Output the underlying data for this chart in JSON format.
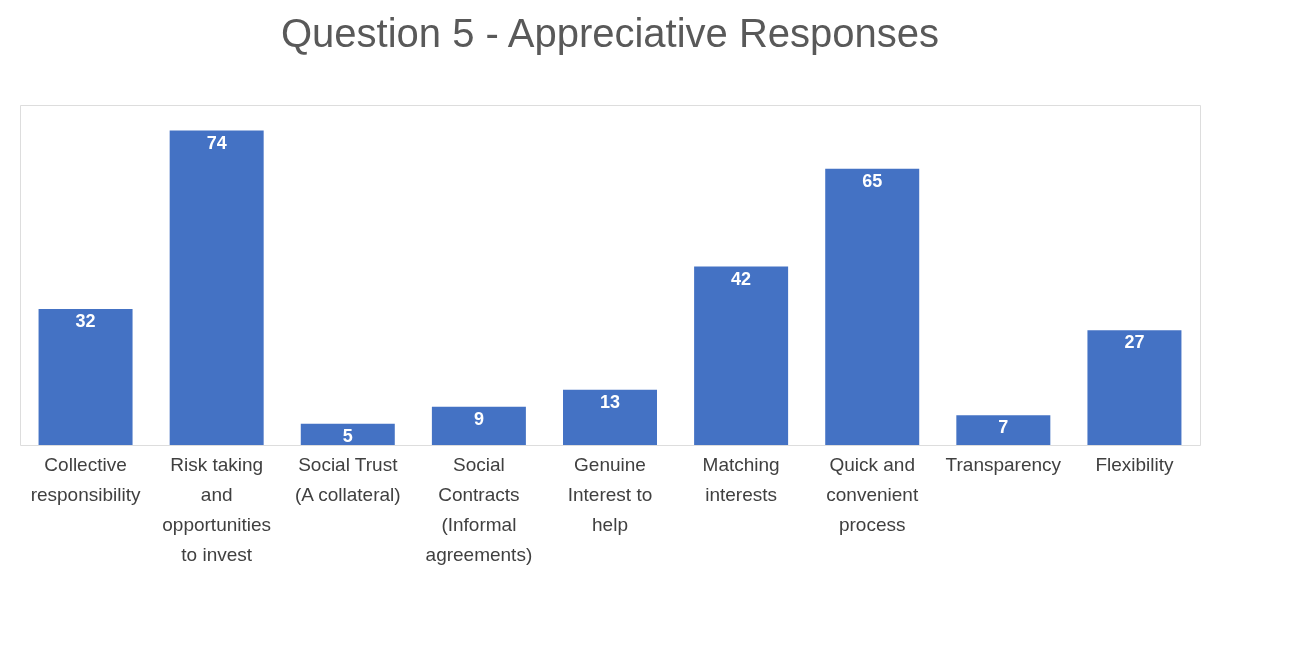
{
  "chart_data": {
    "type": "bar",
    "title": "Question 5 - Appreciative Responses",
    "categories": [
      "Collective responsibility",
      "Risk taking and opportunities to invest",
      "Social Trust (A collateral)",
      "Social Contracts (Informal agreements)",
      "Genuine Interest to help",
      "Matching interests",
      "Quick and convenient process",
      "Transparency",
      "Flexibility"
    ],
    "values": [
      32,
      74,
      5,
      9,
      13,
      42,
      65,
      7,
      27
    ],
    "color": "#4472c4",
    "data_labels": true
  }
}
